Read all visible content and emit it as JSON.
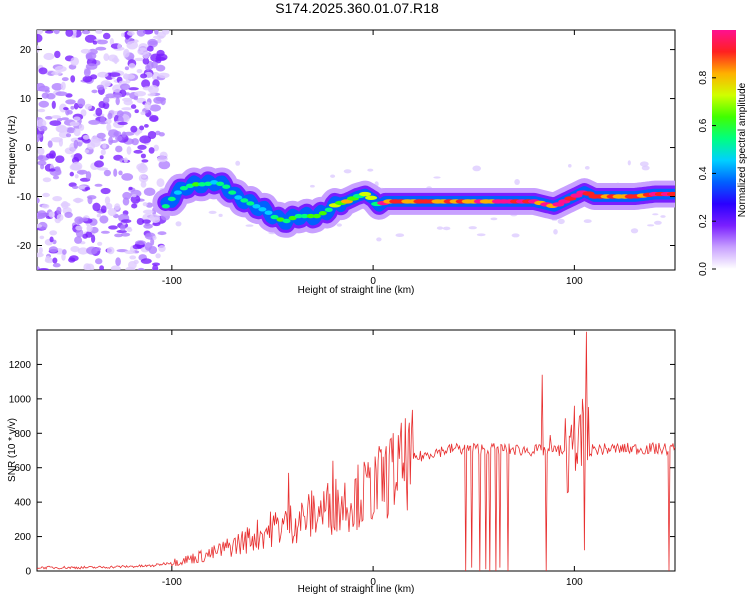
{
  "figure_title": "S174.2025.360.01.07.R18",
  "chart_data": [
    {
      "type": "heatmap",
      "title": "S174.2025.360.01.07.R18",
      "xlabel": "Height of straight line (km)",
      "ylabel": "Frequency (Hz)",
      "xlim": [
        -167,
        150
      ],
      "ylim": [
        -25,
        24
      ],
      "xticks": [
        -100,
        0,
        100
      ],
      "xtick_labels": [
        "-100",
        "0",
        "100"
      ],
      "yticks": [
        -20,
        -10,
        0,
        10,
        20
      ],
      "ytick_labels": [
        "-20",
        "-10",
        "0",
        "10",
        "20"
      ],
      "colorbar": {
        "label": "Normalized spectral amplitude",
        "range": [
          0,
          1
        ],
        "ticks": [
          0,
          0.2,
          0.4,
          0.6,
          0.8
        ],
        "tick_labels": [
          "0.0",
          "0.2",
          "0.4",
          "0.6",
          "0.8"
        ],
        "colors": [
          "#ffffff",
          "#c8a0ff",
          "#7a1fff",
          "#2a00ff",
          "#0060ff",
          "#00d0ff",
          "#00ff80",
          "#40ff00",
          "#d0ff00",
          "#ffb000",
          "#ff2020",
          "#ff1090"
        ]
      },
      "ridge": {
        "x": [
          -103,
          -98,
          -93,
          -88,
          -83,
          -78,
          -73,
          -68,
          -63,
          -58,
          -53,
          -48,
          -43,
          -38,
          -33,
          -28,
          -23,
          -18,
          -13,
          -8,
          -4,
          0,
          3,
          6,
          10,
          20,
          30,
          40,
          50,
          60,
          70,
          75,
          80,
          85,
          90,
          95,
          100,
          105,
          110,
          120,
          130,
          140,
          150
        ],
        "y": [
          -12,
          -9.5,
          -8,
          -7.5,
          -7.5,
          -7,
          -8,
          -10,
          -11,
          -12,
          -13,
          -14.5,
          -15,
          -14,
          -14,
          -14,
          -13,
          -11.5,
          -11,
          -10,
          -9.5,
          -10.5,
          -12,
          -11,
          -11,
          -11,
          -11,
          -11,
          -11,
          -11,
          -11,
          -11,
          -11,
          -11.5,
          -12,
          -11,
          -10,
          -9,
          -10,
          -10,
          -10,
          -9.5,
          -9.5
        ]
      },
      "noise_region_x": [
        -167,
        -103
      ]
    },
    {
      "type": "line",
      "title": "",
      "xlabel": "Height of straight line (km)",
      "ylabel": "SNR (10 * v/v)",
      "xlim": [
        -167,
        150
      ],
      "ylim": [
        0,
        1400
      ],
      "xticks": [
        -100,
        0,
        100
      ],
      "xtick_labels": [
        "-100",
        "0",
        "100"
      ],
      "yticks": [
        0,
        200,
        400,
        600,
        800,
        1000,
        1200
      ],
      "ytick_labels": [
        "0",
        "200",
        "400",
        "600",
        "800",
        "1000",
        "1200"
      ],
      "color": "#e83030",
      "envelope": {
        "x": [
          -167,
          -140,
          -110,
          -95,
          -80,
          -65,
          -50,
          -40,
          -30,
          -20,
          -10,
          0,
          10,
          20,
          30,
          40,
          60,
          80,
          100,
          120,
          150
        ],
        "y": [
          20,
          20,
          30,
          60,
          100,
          170,
          250,
          280,
          330,
          380,
          420,
          480,
          570,
          650,
          690,
          710,
          710,
          700,
          700,
          710,
          710
        ]
      },
      "spikes": [
        {
          "x": -42,
          "y": 570
        },
        {
          "x": -20,
          "y": 640
        },
        {
          "x": 9,
          "y": 770
        },
        {
          "x": 42,
          "y": 730
        },
        {
          "x": 84,
          "y": 1140
        },
        {
          "x": 88,
          "y": 790
        },
        {
          "x": 100,
          "y": 960
        },
        {
          "x": 104,
          "y": 1000
        },
        {
          "x": 106,
          "y": 1390
        }
      ],
      "dropouts": [
        {
          "x": 46,
          "y": 0
        },
        {
          "x": 49,
          "y": 20
        },
        {
          "x": 53,
          "y": 0
        },
        {
          "x": 56,
          "y": 10
        },
        {
          "x": 58,
          "y": 0
        },
        {
          "x": 61,
          "y": 0
        },
        {
          "x": 63,
          "y": 20
        },
        {
          "x": 67,
          "y": 0
        },
        {
          "x": 86,
          "y": 0
        },
        {
          "x": 105,
          "y": 120
        },
        {
          "x": 147,
          "y": 0
        }
      ]
    }
  ]
}
